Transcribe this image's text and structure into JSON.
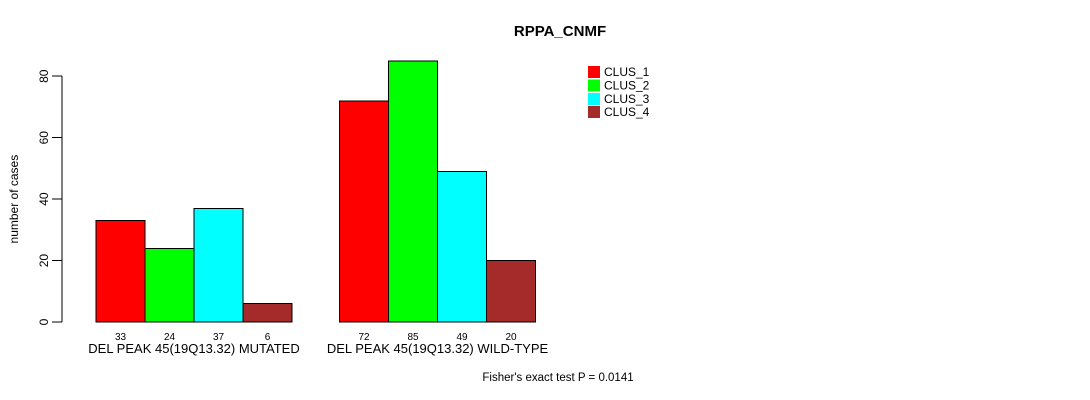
{
  "page": {
    "background": "#FFFFFF"
  },
  "chart_data": {
    "type": "bar",
    "title": "RPPA_CNMF",
    "xlabel": "",
    "ylabel": "number of cases",
    "ylim": [
      0,
      85
    ],
    "yticks": [
      0,
      20,
      40,
      60,
      80
    ],
    "grid": false,
    "legend_position": "top-right-outside-plot",
    "categories": [
      "DEL PEAK 45(19Q13.32) MUTATED",
      "DEL PEAK 45(19Q13.32) WILD-TYPE"
    ],
    "series": [
      {
        "name": "CLUS_1",
        "color": "#FF0000",
        "values": [
          33,
          72
        ]
      },
      {
        "name": "CLUS_2",
        "color": "#00FF00",
        "values": [
          24,
          85
        ]
      },
      {
        "name": "CLUS_3",
        "color": "#00FFFF",
        "values": [
          37,
          49
        ]
      },
      {
        "name": "CLUS_4",
        "color": "#A52A2A",
        "values": [
          6,
          20
        ]
      }
    ],
    "bar_value_labels_shown": true,
    "annotation": "Fisher's exact test P = 0.0141",
    "axis_color": "#000000",
    "text_color": "#000000",
    "bar_border_color": "#000000"
  }
}
